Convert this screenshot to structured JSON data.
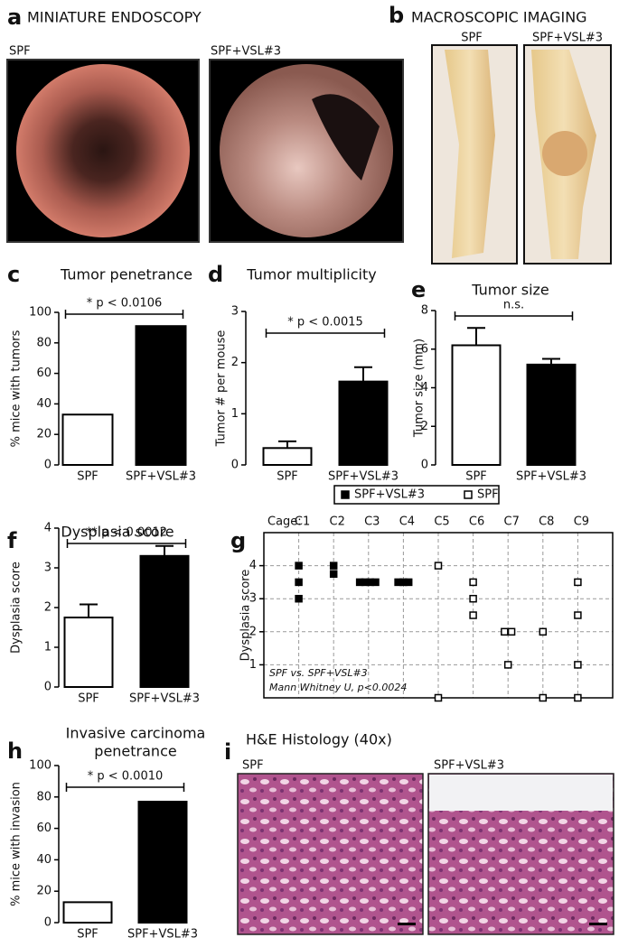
{
  "panel_a": {
    "letter": "a",
    "title": "MINIATURE ENDOSCOPY",
    "image_labels": [
      "SPF",
      "SPF+VSL#3"
    ]
  },
  "panel_b": {
    "letter": "b",
    "title": "MACROSCOPIC IMAGING",
    "image_labels": [
      "SPF",
      "SPF+VSL#3"
    ]
  },
  "panel_i": {
    "letter": "i",
    "title": "H&E Histology (40x)",
    "image_labels": [
      "SPF",
      "SPF+VSL#3"
    ]
  },
  "chart_data": [
    {
      "letter": "c",
      "type": "bar",
      "title": "Tumor penetrance",
      "ylabel": "% mice with tumors",
      "categories": [
        "SPF",
        "SPF+VSL#3"
      ],
      "values": [
        33,
        91
      ],
      "colors": [
        "#ffffff",
        "#000000"
      ],
      "ylim": [
        0,
        100
      ],
      "yticks": [
        0,
        20,
        40,
        60,
        80,
        100
      ],
      "annotation": "* p < 0.0106"
    },
    {
      "letter": "d",
      "type": "bar",
      "title": "Tumor multiplicity",
      "ylabel": "Tumor # per mouse",
      "categories": [
        "SPF",
        "SPF+VSL#3"
      ],
      "values": [
        0.33,
        1.63
      ],
      "errors": [
        0.13,
        0.28
      ],
      "colors": [
        "#ffffff",
        "#000000"
      ],
      "ylim": [
        0,
        3
      ],
      "yticks": [
        0,
        1,
        2,
        3
      ],
      "annotation": "* p < 0.0015"
    },
    {
      "letter": "e",
      "type": "bar",
      "title": "Tumor size",
      "ylabel": "Tumor size (mm)",
      "categories": [
        "SPF",
        "SPF+VSL#3"
      ],
      "values": [
        6.2,
        5.2
      ],
      "errors": [
        0.9,
        0.3
      ],
      "colors": [
        "#ffffff",
        "#000000"
      ],
      "ylim": [
        0,
        8
      ],
      "yticks": [
        0,
        2,
        4,
        6,
        8
      ],
      "annotation": "n.s."
    },
    {
      "letter": "f",
      "type": "bar",
      "title": "Dysplasia score",
      "ylabel": "Dysplasia score",
      "categories": [
        "SPF",
        "SPF+VSL#3"
      ],
      "values": [
        1.75,
        3.3
      ],
      "errors": [
        0.33,
        0.25
      ],
      "colors": [
        "#ffffff",
        "#000000"
      ],
      "ylim": [
        0,
        4
      ],
      "yticks": [
        0,
        1,
        2,
        3,
        4
      ],
      "annotation": "** p < 0.0012"
    },
    {
      "letter": "g",
      "type": "scatter",
      "ylabel": "Dysplasia score",
      "xlabel": "Cage:",
      "note": [
        "SPF vs. SPF+VSL#3",
        "Mann Whitney U, p<0.0024"
      ],
      "grid": true,
      "xlim": [
        0,
        10
      ],
      "xticks": [
        {
          "value": 1,
          "label": "C1"
        },
        {
          "value": 2,
          "label": "C2"
        },
        {
          "value": 3,
          "label": "C3"
        },
        {
          "value": 4,
          "label": "C4"
        },
        {
          "value": 5,
          "label": "C5"
        },
        {
          "value": 6,
          "label": "C6"
        },
        {
          "value": 7,
          "label": "C7"
        },
        {
          "value": 8,
          "label": "C8"
        },
        {
          "value": 9,
          "label": "C9"
        }
      ],
      "ylim": [
        0,
        5
      ],
      "yticks": [
        1,
        2,
        3,
        4
      ],
      "series": [
        {
          "name": "SPF+VSL#3",
          "color": "#000000",
          "marker": "filled",
          "x": [
            1,
            1,
            1,
            2,
            2,
            2.75,
            2.9,
            3.05,
            3.2,
            3.85,
            4,
            4.15
          ],
          "values": [
            4,
            3.5,
            3,
            4,
            3.75,
            3.5,
            3.5,
            3.5,
            3.5,
            3.5,
            3.5,
            3.5
          ]
        },
        {
          "name": "SPF",
          "color": "#000000",
          "marker": "open",
          "x": [
            5,
            5,
            6,
            6,
            6,
            6.9,
            7.1,
            7,
            8,
            8,
            9,
            9,
            9,
            9
          ],
          "values": [
            4,
            0,
            3.5,
            3,
            2.5,
            2,
            2,
            1,
            2,
            0,
            3.5,
            2.5,
            1,
            0
          ]
        }
      ]
    },
    {
      "letter": "h",
      "type": "bar",
      "title": [
        "Invasive carcinoma",
        "penetrance"
      ],
      "ylabel": "% mice with invasion",
      "categories": [
        "SPF",
        "SPF+VSL#3"
      ],
      "values": [
        13,
        77
      ],
      "colors": [
        "#ffffff",
        "#000000"
      ],
      "ylim": [
        0,
        100
      ],
      "yticks": [
        0,
        20,
        40,
        60,
        80,
        100
      ],
      "annotation": "* p < 0.0010"
    }
  ]
}
